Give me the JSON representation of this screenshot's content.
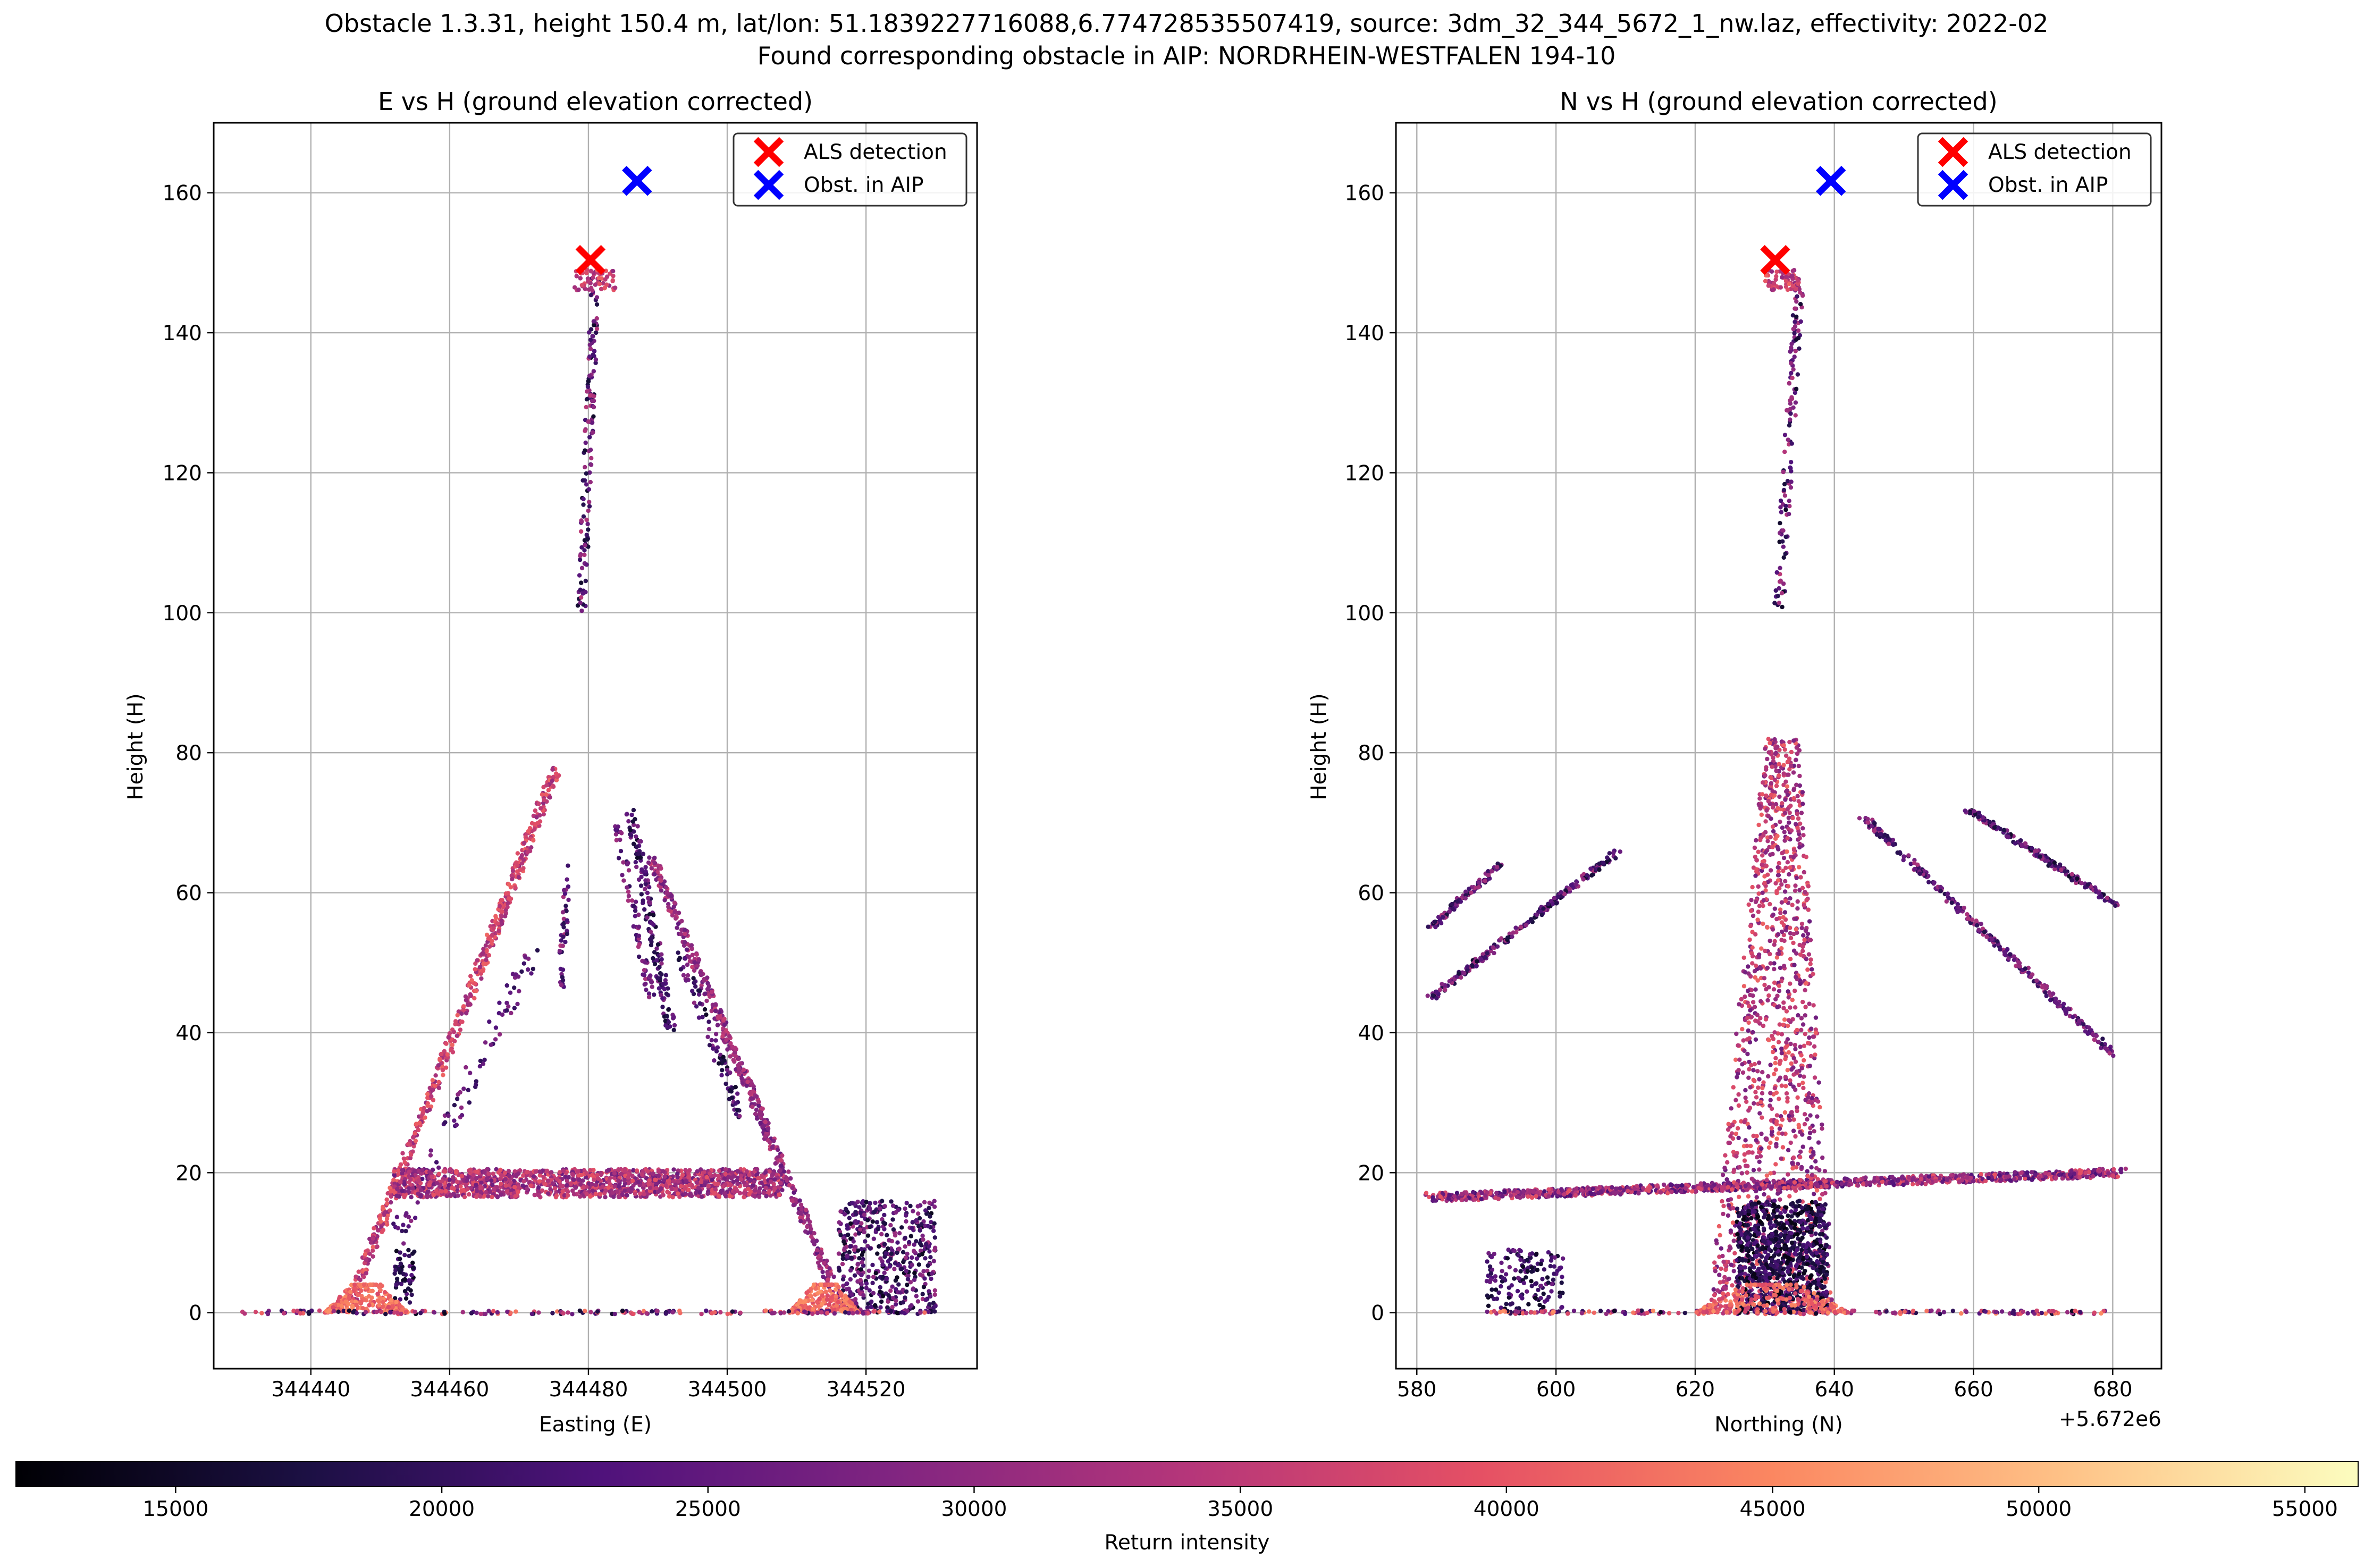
{
  "suptitle": {
    "line1": "Obstacle 1.3.31, height 150.4 m, lat/lon: 51.1839227716088,6.774728535507419, source: 3dm_32_344_5672_1_nw.laz, effectivity: 2022-02",
    "line2": "Found corresponding obstacle in AIP: NORDRHEIN-WESTFALEN 194-10"
  },
  "colorbar": {
    "label": "Return intensity",
    "min": 12000,
    "max": 56000,
    "ticks": [
      15000,
      20000,
      25000,
      30000,
      35000,
      40000,
      45000,
      50000,
      55000
    ],
    "tick_labels": [
      "15000",
      "20000",
      "25000",
      "30000",
      "35000",
      "40000",
      "45000",
      "50000",
      "55000"
    ],
    "colormap": "magma"
  },
  "colors": {
    "grid": "#b0b0b0",
    "als_marker": "#ff0000",
    "aip_marker": "#0000ff"
  },
  "chart_data": [
    {
      "type": "scatter",
      "title": "E vs H (ground elevation corrected)",
      "xlabel": "Easting (E)",
      "ylabel": "Height (H)",
      "xlim": [
        344426,
        344536
      ],
      "ylim": [
        -8,
        170
      ],
      "xticks": [
        344440,
        344460,
        344480,
        344500,
        344520
      ],
      "xtick_labels": [
        "344440",
        "344460",
        "344480",
        "344500",
        "344520"
      ],
      "yticks": [
        0,
        20,
        40,
        60,
        80,
        100,
        120,
        140,
        160
      ],
      "ytick_labels": [
        "0",
        "20",
        "40",
        "60",
        "80",
        "100",
        "120",
        "140",
        "160"
      ],
      "x_offset_label": "",
      "grid": true,
      "legend": {
        "placement": "upper right",
        "entries": [
          "ALS detection",
          "Obst. in AIP"
        ]
      },
      "markers": [
        {
          "name": "ALS detection",
          "x": 344480.3,
          "y": 150.4,
          "color": "#ff0000"
        },
        {
          "name": "Obst. in AIP",
          "x": 344487.0,
          "y": 161.7,
          "color": "#0000ff"
        }
      ],
      "point_cloud": [
        {
          "shape": "segment",
          "from": [
            344446,
            2
          ],
          "to": [
            344475.5,
            78
          ],
          "n": 520,
          "spread": 0.8,
          "intensity": [
            30000,
            42000
          ]
        },
        {
          "shape": "segment",
          "from": [
            344452,
            10
          ],
          "to": [
            344472,
            52
          ],
          "n": 90,
          "spread": 1.5,
          "intensity": [
            18000,
            30000
          ]
        },
        {
          "shape": "segment",
          "from": [
            344476,
            46
          ],
          "to": [
            344477,
            64
          ],
          "n": 40,
          "spread": 0.5,
          "intensity": [
            18000,
            34000
          ]
        },
        {
          "shape": "segment",
          "from": [
            344486,
            72
          ],
          "to": [
            344492,
            40
          ],
          "n": 150,
          "spread": 0.7,
          "intensity": [
            15000,
            30000
          ]
        },
        {
          "shape": "segment",
          "from": [
            344484,
            70
          ],
          "to": [
            344489,
            45
          ],
          "n": 70,
          "spread": 0.6,
          "intensity": [
            20000,
            33000
          ]
        },
        {
          "shape": "segment",
          "from": [
            344489,
            65
          ],
          "to": [
            344516,
            2
          ],
          "n": 460,
          "spread": 0.7,
          "intensity": [
            25000,
            36000
          ]
        },
        {
          "shape": "segment",
          "from": [
            344493,
            52
          ],
          "to": [
            344502,
            28
          ],
          "n": 80,
          "spread": 0.8,
          "intensity": [
            15000,
            30000
          ]
        },
        {
          "shape": "band",
          "x": [
            344452,
            344508
          ],
          "y": [
            16.5,
            20.5
          ],
          "n": 1400,
          "intensity": [
            26000,
            40000
          ]
        },
        {
          "shape": "segment",
          "from": [
            344479,
            100
          ],
          "to": [
            344481,
            148
          ],
          "n": 140,
          "spread": 0.6,
          "intensity": [
            15000,
            35000
          ]
        },
        {
          "shape": "band",
          "x": [
            344478,
            344484
          ],
          "y": [
            146,
            149
          ],
          "n": 60,
          "intensity": [
            30000,
            42000
          ]
        },
        {
          "shape": "blob",
          "x": [
            344516,
            344530
          ],
          "y": [
            0,
            16
          ],
          "n": 500,
          "intensity": [
            14000,
            32000
          ]
        },
        {
          "shape": "blob",
          "x": [
            344452,
            344455
          ],
          "y": [
            0,
            9
          ],
          "n": 60,
          "intensity": [
            14000,
            26000
          ]
        },
        {
          "shape": "mound",
          "x": [
            344442,
            344454
          ],
          "y": [
            0,
            4
          ],
          "n": 260,
          "intensity": [
            38000,
            46000
          ]
        },
        {
          "shape": "mound",
          "x": [
            344509,
            344519
          ],
          "y": [
            0,
            4
          ],
          "n": 240,
          "intensity": [
            38000,
            46000
          ]
        },
        {
          "shape": "band",
          "x": [
            344430,
            344530
          ],
          "y": [
            -0.2,
            0.3
          ],
          "n": 200,
          "intensity": [
            14000,
            44000
          ]
        }
      ]
    },
    {
      "type": "scatter",
      "title": "N vs H (ground elevation corrected)",
      "xlabel": "Northing (N)",
      "ylabel": "Height (H)",
      "xlim": [
        5672577,
        5672687
      ],
      "ylim": [
        -8,
        170
      ],
      "xticks": [
        5672580,
        5672600,
        5672620,
        5672640,
        5672660,
        5672680
      ],
      "xtick_labels": [
        "580",
        "600",
        "620",
        "640",
        "660",
        "680"
      ],
      "x_offset_label": "+5.672e6",
      "yticks": [
        0,
        20,
        40,
        60,
        80,
        100,
        120,
        140,
        160
      ],
      "ytick_labels": [
        "0",
        "20",
        "40",
        "60",
        "80",
        "100",
        "120",
        "140",
        "160"
      ],
      "grid": true,
      "legend": {
        "placement": "upper right",
        "entries": [
          "ALS detection",
          "Obst. in AIP"
        ]
      },
      "markers": [
        {
          "name": "ALS detection",
          "x": 5672631.5,
          "y": 150.4,
          "color": "#ff0000"
        },
        {
          "name": "Obst. in AIP",
          "x": 5672639.5,
          "y": 161.7,
          "color": "#0000ff"
        }
      ],
      "point_cloud": [
        {
          "shape": "segment",
          "from": [
            5672582,
            16.5
          ],
          "to": [
            5672681,
            20
          ],
          "n": 1100,
          "spread": 1.2,
          "intensity": [
            22000,
            40000
          ]
        },
        {
          "shape": "segment",
          "from": [
            5672582,
            55
          ],
          "to": [
            5672592,
            64
          ],
          "n": 100,
          "spread": 0.6,
          "intensity": [
            15000,
            33000
          ]
        },
        {
          "shape": "segment",
          "from": [
            5672582,
            45
          ],
          "to": [
            5672609,
            66
          ],
          "n": 230,
          "spread": 0.6,
          "intensity": [
            15000,
            33000
          ]
        },
        {
          "shape": "segment",
          "from": [
            5672644,
            71
          ],
          "to": [
            5672680,
            37
          ],
          "n": 300,
          "spread": 0.6,
          "intensity": [
            18000,
            33000
          ]
        },
        {
          "shape": "segment",
          "from": [
            5672659,
            72
          ],
          "to": [
            5672681,
            58
          ],
          "n": 190,
          "spread": 0.6,
          "intensity": [
            15000,
            33000
          ]
        },
        {
          "shape": "tower",
          "x": [
            5672622,
            5672640
          ],
          "top_x": [
            5672630,
            5672635
          ],
          "y": [
            0,
            82
          ],
          "n": 1300,
          "intensity": [
            26000,
            42000
          ]
        },
        {
          "shape": "blob",
          "x": [
            5672626,
            5672639
          ],
          "y": [
            0,
            16
          ],
          "n": 900,
          "intensity": [
            12500,
            24000
          ]
        },
        {
          "shape": "blob",
          "x": [
            5672590,
            5672601
          ],
          "y": [
            0,
            9
          ],
          "n": 160,
          "intensity": [
            14000,
            27000
          ]
        },
        {
          "shape": "segment",
          "from": [
            5672632,
            100
          ],
          "to": [
            5672635,
            148
          ],
          "n": 130,
          "spread": 0.7,
          "intensity": [
            15000,
            35000
          ]
        },
        {
          "shape": "band",
          "x": [
            5672630,
            5672635
          ],
          "y": [
            146,
            149
          ],
          "n": 60,
          "intensity": [
            30000,
            42000
          ]
        },
        {
          "shape": "band",
          "x": [
            5672590,
            5672680
          ],
          "y": [
            -0.2,
            0.3
          ],
          "n": 220,
          "intensity": [
            14000,
            46000
          ]
        },
        {
          "shape": "mound",
          "x": [
            5672620,
            5672642
          ],
          "y": [
            0,
            4
          ],
          "n": 260,
          "intensity": [
            36000,
            46000
          ]
        }
      ]
    }
  ]
}
